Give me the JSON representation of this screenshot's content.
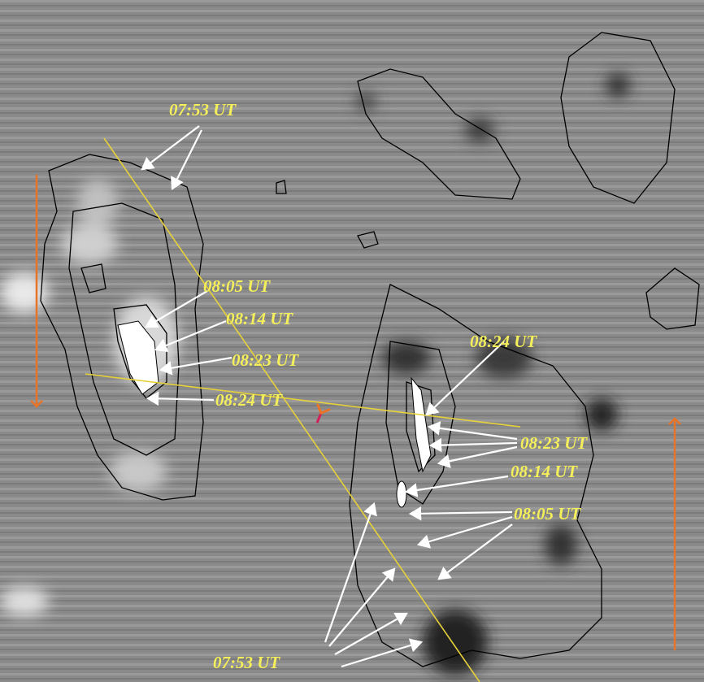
{
  "labels": {
    "left": [
      "07:53 UT",
      "08:05 UT",
      "08:14 UT",
      "08:23 UT",
      "08:24 UT"
    ],
    "right": [
      "08:24 UT",
      "08:23 UT",
      "08:14 UT",
      "08:05 UT",
      "07:53 UT"
    ]
  }
}
